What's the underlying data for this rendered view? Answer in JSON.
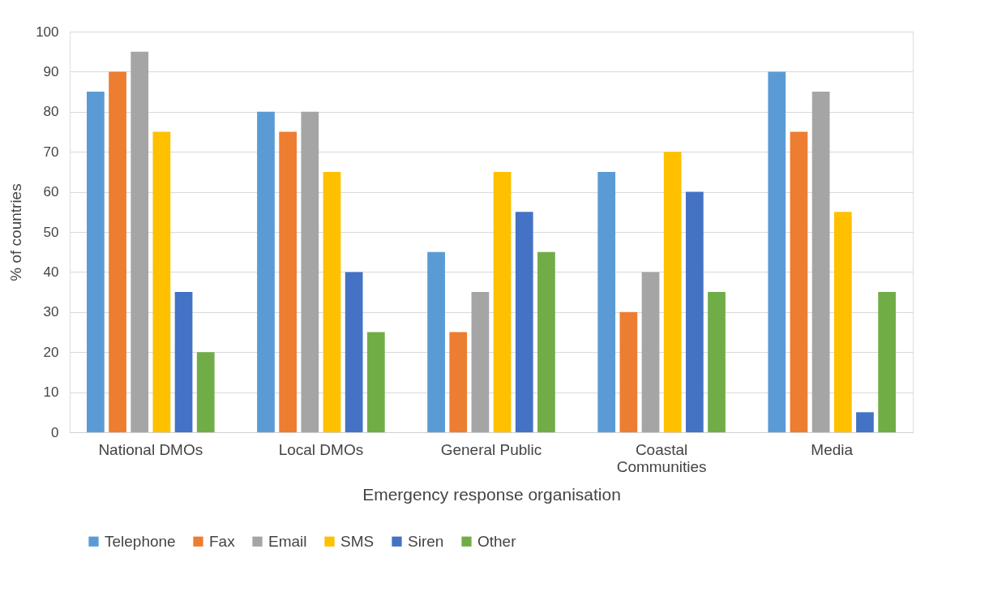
{
  "chart_data": {
    "type": "bar",
    "xlabel": "Emergency response organisation",
    "ylabel": "% of countries",
    "categories": [
      "National DMOs",
      "Local DMOs",
      "General Public",
      "Coastal Communities",
      "Media"
    ],
    "series": [
      {
        "name": "Telephone",
        "color": "#5b9bd5",
        "values": [
          85,
          80,
          45,
          65,
          90
        ]
      },
      {
        "name": "Fax",
        "color": "#ed7d31",
        "values": [
          90,
          75,
          25,
          30,
          75
        ]
      },
      {
        "name": "Email",
        "color": "#a5a5a5",
        "values": [
          95,
          80,
          35,
          40,
          85
        ]
      },
      {
        "name": "SMS",
        "color": "#ffc000",
        "values": [
          75,
          65,
          65,
          70,
          55
        ]
      },
      {
        "name": "Siren",
        "color": "#4472c4",
        "values": [
          35,
          40,
          55,
          60,
          5
        ]
      },
      {
        "name": "Other",
        "color": "#70ad47",
        "values": [
          20,
          25,
          45,
          35,
          35
        ]
      }
    ],
    "ylim": [
      0,
      100
    ],
    "yticks": [
      0,
      10,
      20,
      30,
      40,
      50,
      60,
      70,
      80,
      90,
      100
    ],
    "grid": "y",
    "legend": "bottom"
  }
}
